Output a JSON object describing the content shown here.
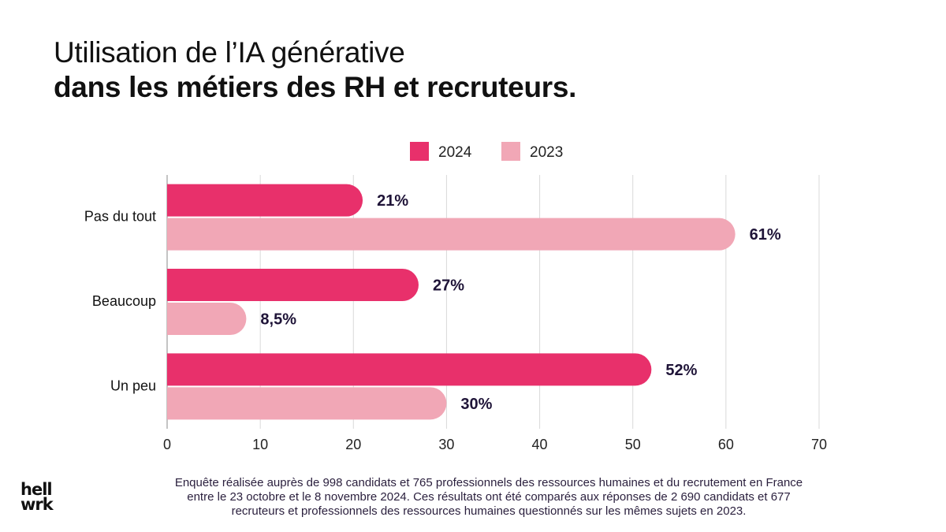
{
  "title": {
    "line1": "Utilisation de l’IA générative",
    "line2": "dans les métiers des RH et recruteurs."
  },
  "colors": {
    "series_2024": "#e8306b",
    "series_2023": "#f1a7b6",
    "label_text": "#1f1438",
    "grid": "#d9d9d9"
  },
  "chart_data": {
    "type": "bar",
    "orientation": "horizontal",
    "categories": [
      "Pas du tout",
      "Beaucoup",
      "Un peu"
    ],
    "series": [
      {
        "name": "2024",
        "values": [
          21,
          27,
          52
        ],
        "labels": [
          "21%",
          "27%",
          "52%"
        ]
      },
      {
        "name": "2023",
        "values": [
          61,
          8.5,
          30
        ],
        "labels": [
          "61%",
          "8,5%",
          "30%"
        ]
      }
    ],
    "xlim": [
      0,
      70
    ],
    "xticks": [
      0,
      10,
      20,
      30,
      40,
      50,
      60,
      70
    ],
    "legend_position": "top-right",
    "grid": true
  },
  "footnote": {
    "line1": "Enquête réalisée auprès de 998 candidats et 765 professionnels des ressources humaines et du recrutement en France",
    "line2": "entre le 23 octobre et le 8 novembre 2024. Ces résultats ont été comparés aux réponses de 2 690 candidats et 677",
    "line3": "recruteurs et professionnels des ressources humaines questionnés sur les mêmes sujets en 2023."
  },
  "logo": {
    "line1": "hell",
    "line2": "wrk"
  }
}
